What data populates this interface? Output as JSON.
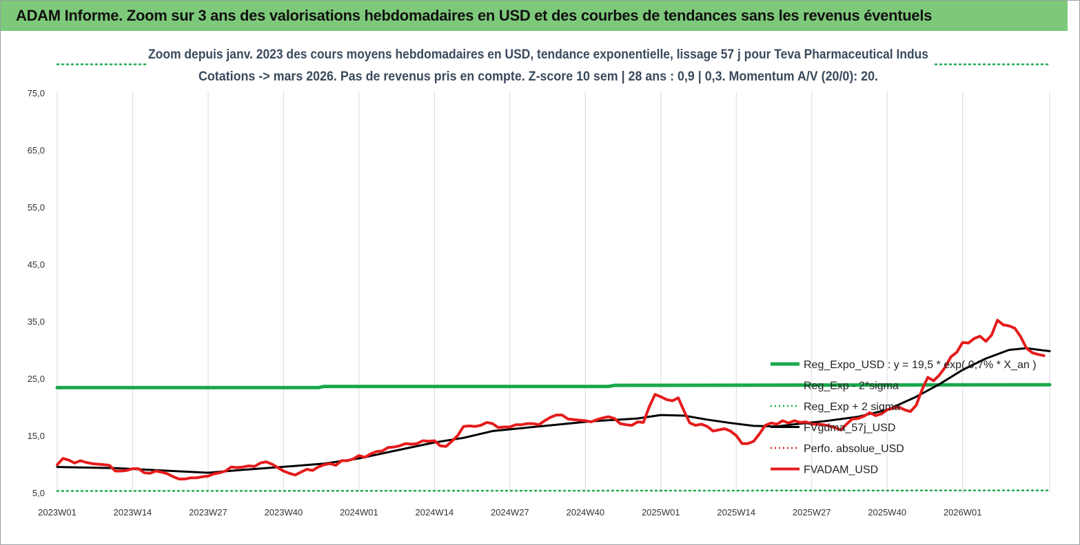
{
  "banner_title": "ADAM Informe. Zoom sur 3 ans des valorisations hebdomadaires en USD et des courbes de tendances sans les revenus éventuels",
  "chart_data": {
    "type": "line",
    "subtitle_line1": "Zoom depuis janv. 2023 des cours moyens hebdomadaires en USD, tendance exponentielle, lissage 57 j pour Teva Pharmaceutical Indus",
    "subtitle_line2": "Cotations -> mars 2026. Pas de revenus pris en compte. Z-score 10 sem  | 28 ans : 0,9 | 0,3. Momentum A/V (20/0): 20.",
    "y_ticks": [
      "5,0",
      "15,0",
      "25,0",
      "35,0",
      "45,0",
      "55,0",
      "65,0",
      "75,0"
    ],
    "y_tick_values": [
      5,
      15,
      25,
      35,
      45,
      55,
      65,
      75
    ],
    "ylim": [
      5,
      80
    ],
    "x_ticks": [
      "2023W01",
      "2023W14",
      "2023W27",
      "2023W40",
      "2024W01",
      "2024W14",
      "2024W27",
      "2024W40",
      "2025W01",
      "2025W14",
      "2025W27",
      "2025W40",
      "2026W01"
    ],
    "x_tick_index": [
      0,
      13,
      26,
      39,
      52,
      65,
      78,
      91,
      104,
      117,
      130,
      143,
      156
    ],
    "x_count": 172,
    "grid": "vertical",
    "legend_position": "right",
    "series": [
      {
        "name": "Reg_Expo_USD : y = 19,5 * exp( 0,7% *  X_an )",
        "color": "#18a84a",
        "style": "solid",
        "width": 5,
        "points": [
          [
            0,
            23.4
          ],
          [
            45,
            23.4
          ],
          [
            46,
            23.6
          ],
          [
            95,
            23.6
          ],
          [
            96,
            23.8
          ],
          [
            171,
            23.9
          ]
        ]
      },
      {
        "name": "Reg_Exp - 2*sigma",
        "color": "#18a84a",
        "style": "dotted",
        "width": 2.5,
        "points": [
          [
            0,
            5.3
          ],
          [
            171,
            5.4
          ]
        ]
      },
      {
        "name": "Reg_Exp + 2 sigma",
        "color": "#18a84a",
        "style": "dotted",
        "width": 2.5,
        "points": [
          [
            0,
            80.0
          ],
          [
            171,
            80.0
          ]
        ]
      },
      {
        "name": "FVgdma_57j_USD",
        "color": "#000000",
        "style": "solid",
        "width": 3,
        "points": [
          [
            0,
            9.5
          ],
          [
            10,
            9.3
          ],
          [
            20,
            8.8
          ],
          [
            26,
            8.5
          ],
          [
            32,
            9.0
          ],
          [
            40,
            9.6
          ],
          [
            46,
            10.1
          ],
          [
            52,
            11.0
          ],
          [
            58,
            12.3
          ],
          [
            65,
            13.8
          ],
          [
            70,
            14.6
          ],
          [
            75,
            15.8
          ],
          [
            80,
            16.3
          ],
          [
            86,
            16.9
          ],
          [
            92,
            17.5
          ],
          [
            100,
            18.0
          ],
          [
            104,
            18.6
          ],
          [
            108,
            18.5
          ],
          [
            112,
            17.8
          ],
          [
            116,
            17.2
          ],
          [
            120,
            16.7
          ],
          [
            124,
            16.6
          ],
          [
            128,
            17.1
          ],
          [
            132,
            17.5
          ],
          [
            138,
            18.3
          ],
          [
            143,
            19.5
          ],
          [
            148,
            21.8
          ],
          [
            152,
            24.0
          ],
          [
            156,
            26.5
          ],
          [
            160,
            28.5
          ],
          [
            164,
            30.0
          ],
          [
            167,
            30.3
          ],
          [
            170,
            29.9
          ],
          [
            171,
            29.8
          ]
        ]
      },
      {
        "name": "Perfo. absolue_USD",
        "color": "#d92020",
        "style": "dotted",
        "width": 2.5,
        "points": []
      },
      {
        "name": "FVADAM_USD",
        "color": "#e51b1b",
        "style": "solid",
        "width": 4,
        "points": [
          [
            0,
            9.9
          ],
          [
            1,
            11.0
          ],
          [
            2,
            10.7
          ],
          [
            3,
            10.2
          ],
          [
            4,
            10.6
          ],
          [
            5,
            10.3
          ],
          [
            6,
            10.1
          ],
          [
            7,
            10.0
          ],
          [
            8,
            9.9
          ],
          [
            9,
            9.8
          ],
          [
            10,
            8.8
          ],
          [
            11,
            8.8
          ],
          [
            12,
            8.9
          ],
          [
            13,
            9.2
          ],
          [
            14,
            9.2
          ],
          [
            15,
            8.5
          ],
          [
            16,
            8.4
          ],
          [
            17,
            8.8
          ],
          [
            18,
            8.6
          ],
          [
            19,
            8.3
          ],
          [
            20,
            7.8
          ],
          [
            21,
            7.4
          ],
          [
            22,
            7.4
          ],
          [
            23,
            7.6
          ],
          [
            24,
            7.6
          ],
          [
            25,
            7.8
          ],
          [
            26,
            7.9
          ],
          [
            27,
            8.3
          ],
          [
            28,
            8.5
          ],
          [
            29,
            8.8
          ],
          [
            30,
            9.5
          ],
          [
            31,
            9.4
          ],
          [
            32,
            9.5
          ],
          [
            33,
            9.7
          ],
          [
            34,
            9.6
          ],
          [
            35,
            10.2
          ],
          [
            36,
            10.4
          ],
          [
            37,
            10.0
          ],
          [
            38,
            9.4
          ],
          [
            39,
            8.8
          ],
          [
            40,
            8.4
          ],
          [
            41,
            8.1
          ],
          [
            42,
            8.6
          ],
          [
            43,
            9.1
          ],
          [
            44,
            8.9
          ],
          [
            45,
            9.5
          ],
          [
            46,
            9.9
          ],
          [
            47,
            10.1
          ],
          [
            48,
            9.8
          ],
          [
            49,
            10.6
          ],
          [
            50,
            10.6
          ],
          [
            51,
            10.9
          ],
          [
            52,
            11.5
          ],
          [
            53,
            11.2
          ],
          [
            54,
            11.8
          ],
          [
            55,
            12.2
          ],
          [
            56,
            12.3
          ],
          [
            57,
            12.9
          ],
          [
            58,
            13.0
          ],
          [
            59,
            13.2
          ],
          [
            60,
            13.6
          ],
          [
            61,
            13.5
          ],
          [
            62,
            13.6
          ],
          [
            63,
            14.1
          ],
          [
            64,
            14.0
          ],
          [
            65,
            14.1
          ],
          [
            66,
            13.2
          ],
          [
            67,
            13.1
          ],
          [
            68,
            14.0
          ],
          [
            69,
            15.0
          ],
          [
            70,
            16.6
          ],
          [
            71,
            16.7
          ],
          [
            72,
            16.6
          ],
          [
            73,
            16.8
          ],
          [
            74,
            17.3
          ],
          [
            75,
            17.1
          ],
          [
            76,
            16.4
          ],
          [
            77,
            16.5
          ],
          [
            78,
            16.5
          ],
          [
            79,
            16.9
          ],
          [
            80,
            16.9
          ],
          [
            81,
            17.1
          ],
          [
            82,
            17.1
          ],
          [
            83,
            16.9
          ],
          [
            84,
            17.6
          ],
          [
            85,
            18.2
          ],
          [
            86,
            18.6
          ],
          [
            87,
            18.6
          ],
          [
            88,
            17.9
          ],
          [
            89,
            17.8
          ],
          [
            90,
            17.7
          ],
          [
            91,
            17.6
          ],
          [
            92,
            17.4
          ],
          [
            93,
            17.8
          ],
          [
            94,
            18.1
          ],
          [
            95,
            18.3
          ],
          [
            96,
            18.0
          ],
          [
            97,
            17.1
          ],
          [
            98,
            16.9
          ],
          [
            99,
            16.8
          ],
          [
            100,
            17.4
          ],
          [
            101,
            17.3
          ],
          [
            102,
            20.0
          ],
          [
            103,
            22.2
          ],
          [
            104,
            21.8
          ],
          [
            105,
            21.3
          ],
          [
            106,
            21.1
          ],
          [
            107,
            21.6
          ],
          [
            108,
            19.3
          ],
          [
            109,
            17.2
          ],
          [
            110,
            16.8
          ],
          [
            111,
            17.0
          ],
          [
            112,
            16.6
          ],
          [
            113,
            15.8
          ],
          [
            114,
            16.0
          ],
          [
            115,
            16.2
          ],
          [
            116,
            15.8
          ],
          [
            117,
            15.0
          ],
          [
            118,
            13.6
          ],
          [
            119,
            13.6
          ],
          [
            120,
            14.0
          ],
          [
            121,
            15.3
          ],
          [
            122,
            16.8
          ],
          [
            123,
            17.2
          ],
          [
            124,
            17.0
          ],
          [
            125,
            17.6
          ],
          [
            126,
            17.2
          ],
          [
            127,
            17.6
          ],
          [
            128,
            17.3
          ],
          [
            129,
            17.4
          ],
          [
            130,
            17.0
          ],
          [
            131,
            17.0
          ],
          [
            132,
            16.9
          ],
          [
            133,
            16.7
          ],
          [
            134,
            16.4
          ],
          [
            135,
            16.0
          ],
          [
            136,
            17.0
          ],
          [
            137,
            17.9
          ],
          [
            138,
            18.0
          ],
          [
            139,
            18.4
          ],
          [
            140,
            19.0
          ],
          [
            141,
            18.5
          ],
          [
            142,
            18.8
          ],
          [
            143,
            19.5
          ],
          [
            144,
            19.8
          ],
          [
            145,
            20.0
          ],
          [
            146,
            19.5
          ],
          [
            147,
            19.2
          ],
          [
            148,
            20.3
          ],
          [
            149,
            23.0
          ],
          [
            150,
            25.2
          ],
          [
            151,
            24.6
          ],
          [
            152,
            25.6
          ],
          [
            153,
            27.0
          ],
          [
            154,
            28.8
          ],
          [
            155,
            29.6
          ],
          [
            156,
            31.3
          ],
          [
            157,
            31.2
          ],
          [
            158,
            32.0
          ],
          [
            159,
            32.4
          ],
          [
            160,
            31.5
          ],
          [
            161,
            32.6
          ],
          [
            162,
            35.2
          ],
          [
            163,
            34.4
          ],
          [
            164,
            34.2
          ],
          [
            165,
            33.8
          ],
          [
            166,
            32.3
          ],
          [
            167,
            30.3
          ],
          [
            168,
            29.5
          ],
          [
            169,
            29.2
          ],
          [
            170,
            29.0
          ]
        ]
      }
    ]
  }
}
